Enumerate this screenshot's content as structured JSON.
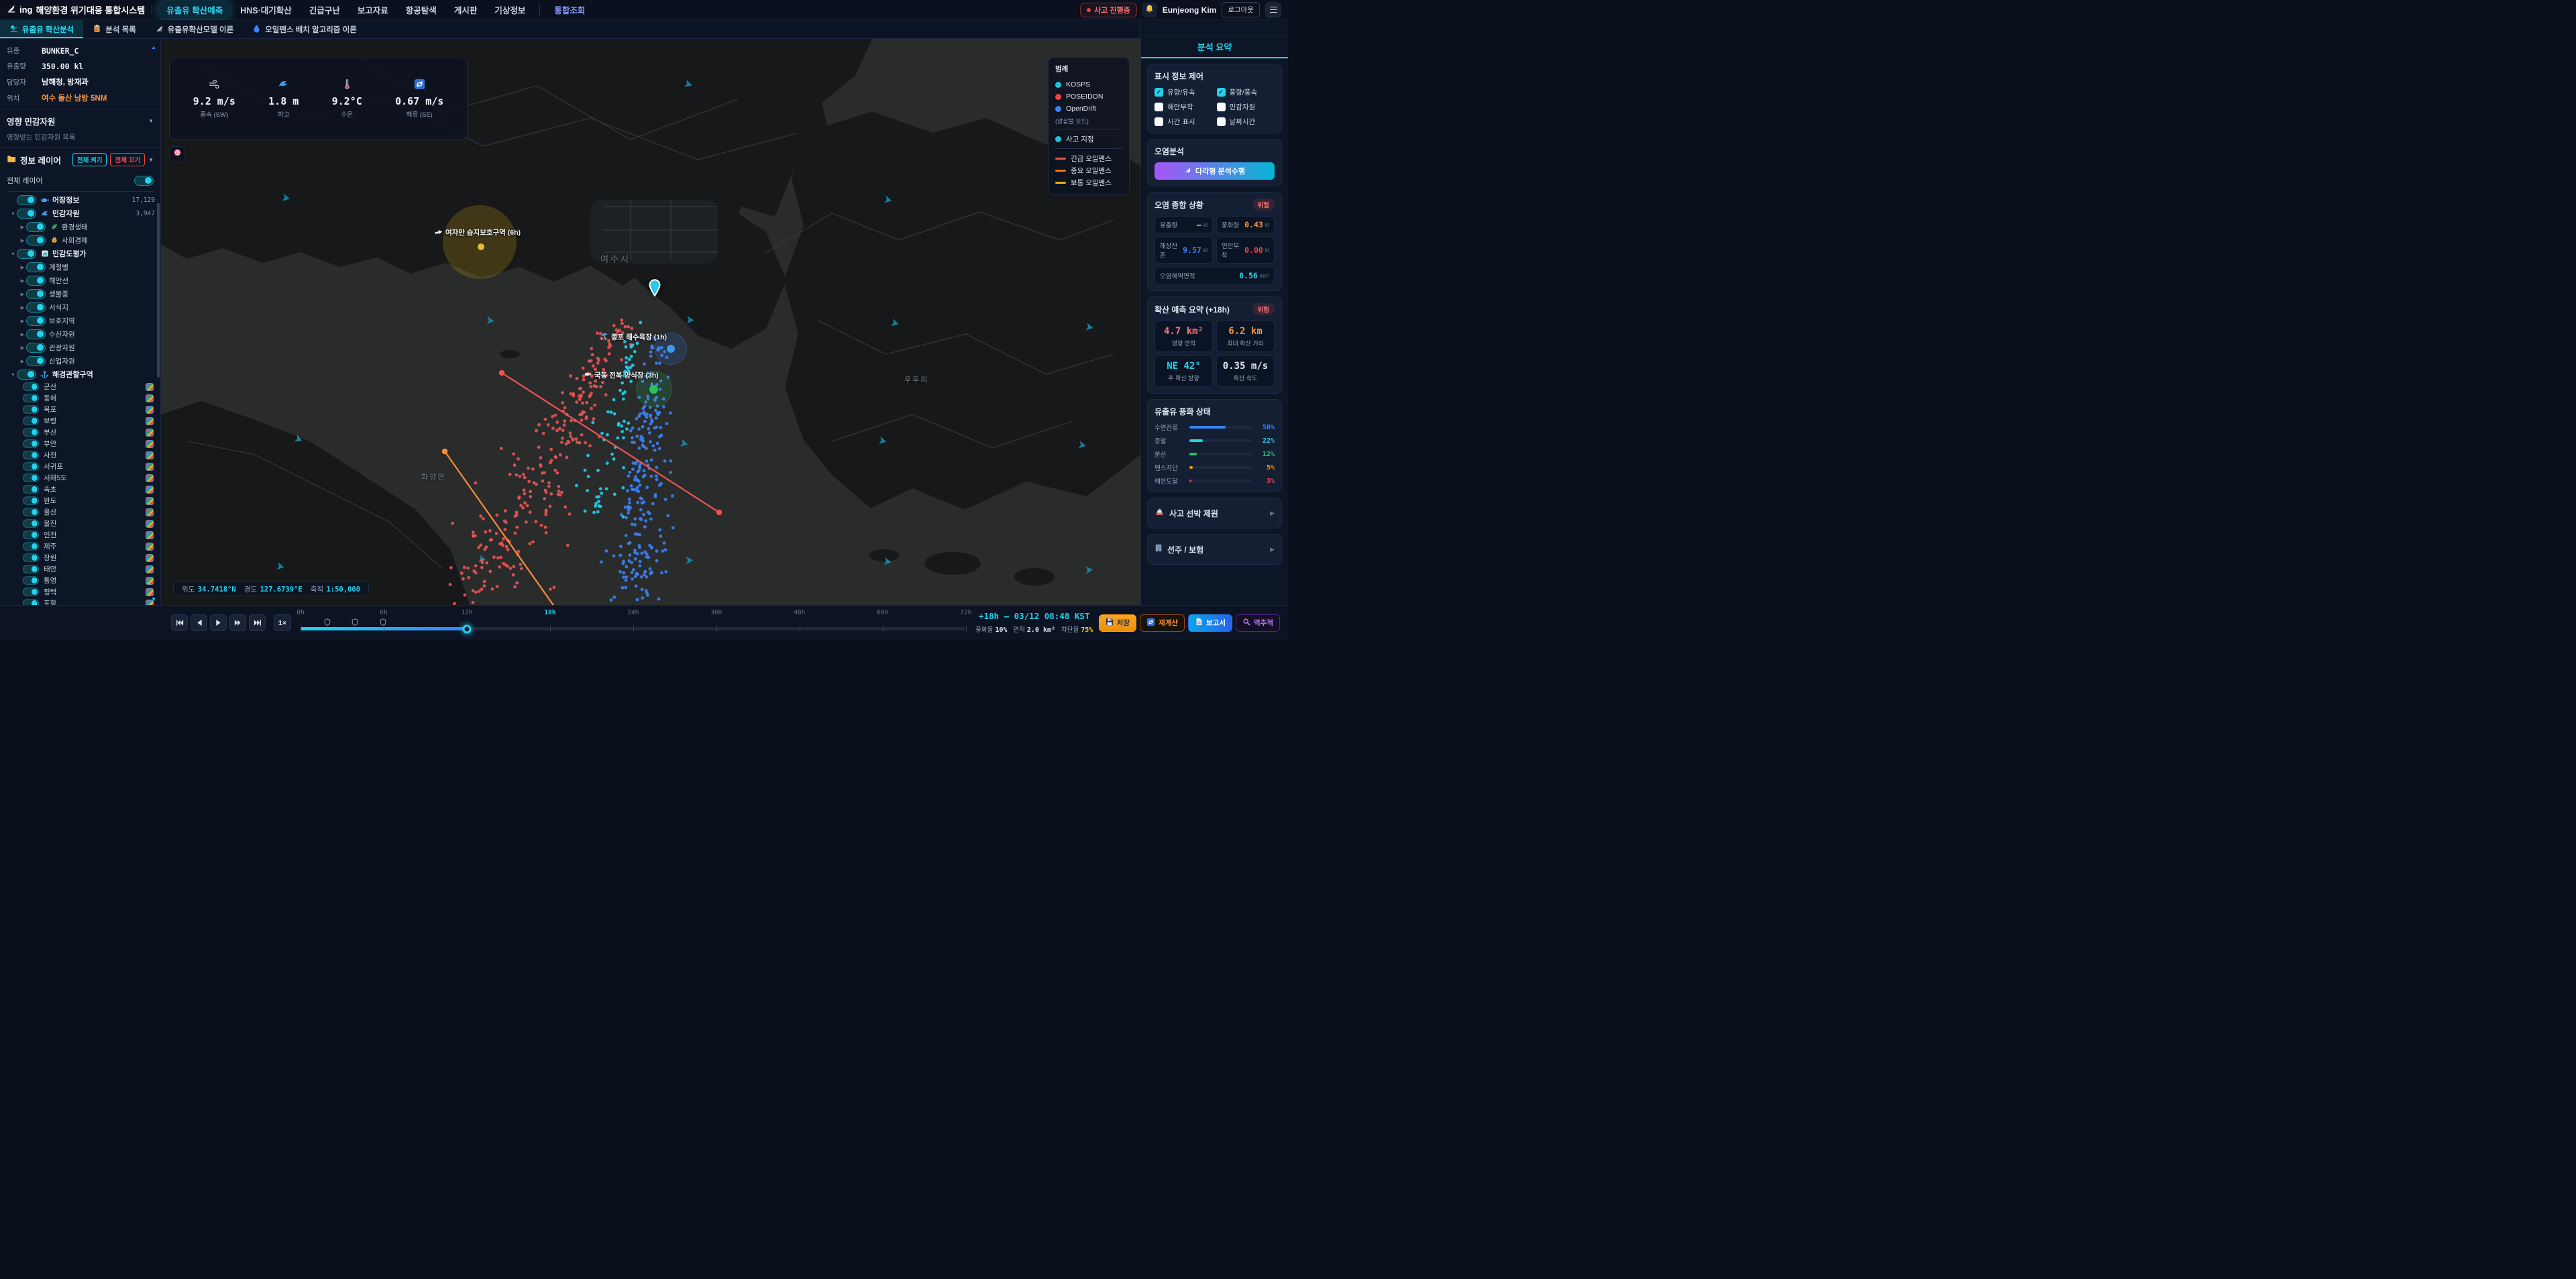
{
  "navbar": {
    "logo_text": "ing",
    "title": "해양환경 위기대응 통합시스템",
    "items": [
      "유출유 확산예측",
      "HNS·대기확산",
      "긴급구난",
      "보고자료",
      "항공탐색",
      "게시판",
      "기상정보"
    ],
    "active_item": "유출유 확산예측",
    "integrated_item": "통합조회",
    "incident_badge": "사고 진행중",
    "user_name": "Eunjeong Kim",
    "logout_label": "로그아웃"
  },
  "tabs": [
    {
      "label": "유출유 확산분석",
      "icon": "microscope",
      "active": true
    },
    {
      "label": "분석 목록",
      "icon": "clipboard",
      "active": false
    },
    {
      "label": "유출유확산모델 이론",
      "icon": "ruler",
      "active": false
    },
    {
      "label": "오일펜스 배치 알고리즘 이론",
      "icon": "drop",
      "active": false
    }
  ],
  "sidebar": {
    "info_rows": [
      {
        "label": "유종",
        "value": "BUNKER_C",
        "mono": true
      },
      {
        "label": "유출량",
        "value": "350.00 kl",
        "mono": true
      },
      {
        "label": "담당자",
        "value": "남해청, 방재과"
      },
      {
        "label": "위치",
        "value": "여수 돌산 남방 5NM",
        "highlight": true
      }
    ],
    "impact_title": "영향 민감자원",
    "impact_empty": "영향받는 민감자원 목록",
    "layers_title": "정보 레이어",
    "all_on_label": "전체 켜기",
    "all_off_label": "전체 끄기",
    "master_label": "전체 레이어",
    "tree": [
      {
        "label": "어장정보",
        "icon": "fish",
        "count": "17,129",
        "level": 1
      },
      {
        "label": "민감자원",
        "icon": "wave",
        "count": "3,947",
        "level": 1,
        "expand": "down"
      },
      {
        "label": "환경생태",
        "icon": "leaf",
        "level": 2,
        "expand": "right"
      },
      {
        "label": "사회경제",
        "icon": "money",
        "level": 2,
        "expand": "right"
      },
      {
        "label": "민감도평가",
        "icon": "chart",
        "level": 1,
        "expand": "down"
      },
      {
        "label": "계절별",
        "level": 2,
        "expand": "right"
      },
      {
        "label": "해안선",
        "level": 2,
        "expand": "right"
      },
      {
        "label": "생물종",
        "level": 2,
        "expand": "right"
      },
      {
        "label": "서식지",
        "level": 2,
        "expand": "right"
      },
      {
        "label": "보호지역",
        "level": 2,
        "expand": "right"
      },
      {
        "label": "수산자원",
        "level": 2,
        "expand": "right"
      },
      {
        "label": "관광자원",
        "level": 2,
        "expand": "right"
      },
      {
        "label": "산업자원",
        "level": 2,
        "expand": "right"
      },
      {
        "label": "해경관할구역",
        "icon": "anchor",
        "level": 1,
        "expand": "down"
      }
    ],
    "regions": [
      "군산",
      "동해",
      "목포",
      "보령",
      "부산",
      "부안",
      "사천",
      "서귀포",
      "서해5도",
      "속초",
      "완도",
      "울산",
      "울진",
      "인천",
      "제주",
      "창원",
      "태안",
      "통영",
      "평택",
      "포항"
    ]
  },
  "map": {
    "weather": [
      {
        "icon": "wind",
        "value": "9.2 m/s",
        "label": "풍속 (SW)"
      },
      {
        "icon": "waveBig",
        "value": "1.8 m",
        "label": "파고"
      },
      {
        "icon": "thermo",
        "value": "9.2°C",
        "label": "수온"
      },
      {
        "icon": "current",
        "value": "0.67 m/s",
        "label": "해류 (SE)"
      }
    ],
    "legend": {
      "title": "범례",
      "models": [
        {
          "name": "KOSPS",
          "color": "#22c3e0"
        },
        {
          "name": "POSEIDON",
          "color": "#ef4444"
        },
        {
          "name": "OpenDrift",
          "color": "#3b82f6"
        }
      ],
      "mode_note": "(앙상블 모드)",
      "incident_label": "사고 지점",
      "incident_color": "#22c3e0",
      "fences": [
        {
          "name": "긴급 오일펜스",
          "color": "#f05252"
        },
        {
          "name": "중요 오일펜스",
          "color": "#f97316"
        },
        {
          "name": "보통 오일펜스",
          "color": "#eab308"
        }
      ]
    },
    "annotations": [
      {
        "label": "여자만 습지보호구역 (6h)",
        "icon": "bird"
      },
      {
        "label": "종포 해수욕장 (1h)",
        "icon": "beach"
      },
      {
        "label": "국동 전복 양식장 (3h)",
        "icon": "whitefish"
      }
    ],
    "places": [
      "여수시",
      "화양면",
      "우두리"
    ],
    "status": {
      "lat_label": "위도",
      "lat": "34.7418°N",
      "lon_label": "경도",
      "lon": "127.6739°E",
      "scale_label": "축척",
      "scale": "1:50,000"
    }
  },
  "panel": {
    "title": "분석 요약",
    "display": {
      "title": "표시 정보 제어",
      "options": [
        {
          "label": "유향/유속",
          "checked": true
        },
        {
          "label": "풍향/풍속",
          "checked": true
        },
        {
          "label": "해안부착",
          "checked": false
        },
        {
          "label": "민감자원",
          "checked": false
        },
        {
          "label": "시간 표시",
          "checked": false
        },
        {
          "label": "날짜시간",
          "checked": false
        }
      ]
    },
    "analysis": {
      "title": "오염분석",
      "button_label": "다각형 분석수행"
    },
    "status": {
      "title": "오염 종합 상황",
      "badge": "위험",
      "stats": [
        {
          "label": "유출량",
          "value": "–",
          "unit": "kl",
          "color": "#e2e8f0"
        },
        {
          "label": "풍화량",
          "value": "0.43",
          "unit": "kl",
          "color": "#fb923c"
        },
        {
          "label": "해상잔존",
          "value": "9.57",
          "unit": "kl",
          "color": "#3b82f6"
        },
        {
          "label": "연안부착",
          "value": "0.00",
          "unit": "kl",
          "color": "#ef4444"
        },
        {
          "label": "오염해역면적",
          "value": "8.56",
          "unit": "km²",
          "color": "#22d3ee",
          "wide": true
        }
      ]
    },
    "forecast": {
      "title": "확산 예측 요약 (+18h)",
      "badge": "위험",
      "cells": [
        {
          "value": "4.7 km²",
          "label": "영향 면적",
          "color": "#f87171"
        },
        {
          "value": "6.2 km",
          "label": "최대 확산 거리",
          "color": "#fb923c"
        },
        {
          "value": "NE 42°",
          "label": "주 확산 방향",
          "color": "#22d3ee"
        },
        {
          "value": "0.35 m/s",
          "label": "확산 속도",
          "color": "#e2e8f0"
        }
      ]
    },
    "weathering": {
      "title": "유출유 풍화 상태",
      "rows": [
        {
          "label": "수면잔류",
          "pct": 58,
          "color": "#3b82f6"
        },
        {
          "label": "증발",
          "pct": 22,
          "color": "#22d3ee"
        },
        {
          "label": "분산",
          "pct": 12,
          "color": "#22c55e"
        },
        {
          "label": "펜스차단",
          "pct": 5,
          "color": "#f59e0b"
        },
        {
          "label": "해안도달",
          "pct": 3,
          "color": "#ef4444"
        }
      ]
    },
    "vessel_title": "사고 선박 제원",
    "owner_title": "선주 / 보험"
  },
  "timeline": {
    "speed_label": "1×",
    "labels": [
      "0h",
      "6h",
      "12h",
      "18h",
      "24h",
      "36h",
      "48h",
      "60h",
      "72h"
    ],
    "current_label": "18h",
    "progress_pct": 25,
    "marker_pcts": [
      4,
      8.2,
      12.4
    ],
    "time_display": "+18h – 03/12 08:48 KST",
    "stats": [
      {
        "label": "풍화율",
        "value": "10%",
        "color": "#e2e8f0"
      },
      {
        "label": "면적",
        "value": "2.0 km²",
        "color": "#e2e8f0"
      },
      {
        "label": "차단율",
        "value": "75%",
        "color": "#facc15"
      }
    ],
    "actions": [
      {
        "label": "저장",
        "icon": "save",
        "style": "primary-orange"
      },
      {
        "label": "재계산",
        "icon": "recalc",
        "style": "outline-orange"
      },
      {
        "label": "보고서",
        "icon": "report",
        "style": "primary-blue"
      },
      {
        "label": "역추적",
        "icon": "trace",
        "style": "outline-purple"
      }
    ]
  }
}
